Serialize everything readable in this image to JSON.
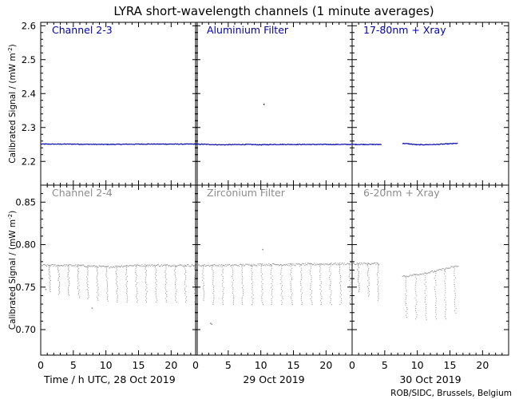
{
  "title": "LYRA short-wavelength channels (1 minute averages)",
  "credit": "ROB/SIDC, Brussels, Belgium",
  "colors": {
    "upper": "#0000aa",
    "lower": "#8c8c8c",
    "axes": "#000000",
    "background": "#ffffff"
  },
  "chart_data": {
    "type": "scatter",
    "x_ticks": [
      "0",
      "5",
      "10",
      "15",
      "20"
    ],
    "day_labels": [
      "Time / h UTC, 28 Oct 2019",
      "29 Oct 2019",
      "30 Oct 2019"
    ],
    "xlim": [
      0,
      24
    ],
    "rows": [
      {
        "ylabel": "Calibrated Signal / (mW m",
        "ylabel_sup": "-2",
        "ylabel_end": ")",
        "ylim": [
          2.13,
          2.61
        ],
        "y_ticks": [
          {
            "v": 2.2,
            "t": "2.2"
          },
          {
            "v": 2.3,
            "t": "2.3"
          },
          {
            "v": 2.4,
            "t": "2.4"
          },
          {
            "v": 2.5,
            "t": "2.5"
          },
          {
            "v": 2.6,
            "t": "2.6"
          }
        ],
        "color": "#0000aa",
        "panels": [
          {
            "name": "Channel 2-3",
            "baseline": [
              [
                0,
                2.251
              ],
              [
                5,
                2.251
              ],
              [
                10,
                2.25
              ],
              [
                15,
                2.251
              ],
              [
                20,
                2.251
              ],
              [
                24,
                2.251
              ]
            ],
            "gaps": [],
            "dips": [],
            "outliers": []
          },
          {
            "name": "Aluminium Filter",
            "baseline": [
              [
                0,
                2.251
              ],
              [
                2,
                2.25
              ],
              [
                4,
                2.249
              ],
              [
                8,
                2.25
              ],
              [
                10,
                2.249
              ],
              [
                12,
                2.25
              ],
              [
                24,
                2.25
              ]
            ],
            "gaps": [],
            "dips": [],
            "outliers": [
              [
                10.4,
                2.37
              ]
            ]
          },
          {
            "name": "17-80nm + Xray",
            "baseline": [
              [
                0,
                2.25
              ],
              [
                4.5,
                2.25
              ],
              [
                8,
                2.253
              ],
              [
                10,
                2.249
              ],
              [
                13,
                2.25
              ],
              [
                16,
                2.253
              ]
            ],
            "gaps": [
              [
                4.5,
                7.6
              ]
            ],
            "xmax": 16.2,
            "dips": [],
            "outliers": []
          }
        ]
      },
      {
        "ylabel": "Calibrated Signal / (mW m",
        "ylabel_sup": "-2",
        "ylabel_end": ")",
        "ylim": [
          0.67,
          0.87
        ],
        "y_ticks": [
          {
            "v": 0.7,
            "t": "0.70"
          },
          {
            "v": 0.75,
            "t": "0.75"
          },
          {
            "v": 0.8,
            "t": "0.80"
          },
          {
            "v": 0.85,
            "t": "0.85"
          }
        ],
        "color": "#8c8c8c",
        "panels": [
          {
            "name": "Channel 2-4",
            "baseline": [
              [
                0,
                0.776
              ],
              [
                5,
                0.776
              ],
              [
                8,
                0.775
              ],
              [
                10,
                0.774
              ],
              [
                14,
                0.776
              ],
              [
                24,
                0.776
              ]
            ],
            "gaps": [],
            "dips": [
              [
                1.2,
                0.745
              ],
              [
                2.6,
                0.742
              ],
              [
                4.1,
                0.741
              ],
              [
                5.6,
                0.738
              ],
              [
                7.0,
                0.737
              ],
              [
                8.5,
                0.735
              ],
              [
                10.0,
                0.734
              ],
              [
                11.5,
                0.733
              ],
              [
                13.0,
                0.733
              ],
              [
                14.5,
                0.733
              ],
              [
                16.0,
                0.733
              ],
              [
                17.5,
                0.733
              ],
              [
                19.0,
                0.733
              ],
              [
                20.5,
                0.733
              ],
              [
                22.0,
                0.733
              ],
              [
                23.5,
                0.733
              ]
            ],
            "outliers": [
              [
                0.7,
                0.748
              ],
              [
                7.8,
                0.726
              ]
            ]
          },
          {
            "name": "Zirconium Filter",
            "baseline": [
              [
                0,
                0.776
              ],
              [
                5,
                0.776
              ],
              [
                10,
                0.777
              ],
              [
                15,
                0.777
              ],
              [
                24,
                0.778
              ]
            ],
            "gaps": [],
            "dips": [
              [
                1.0,
                0.735
              ],
              [
                2.5,
                0.73
              ],
              [
                4.0,
                0.73
              ],
              [
                5.5,
                0.73
              ],
              [
                7.0,
                0.73
              ],
              [
                8.5,
                0.73
              ],
              [
                10.0,
                0.73
              ],
              [
                11.5,
                0.73
              ],
              [
                13.0,
                0.73
              ],
              [
                14.5,
                0.73
              ],
              [
                16.0,
                0.73
              ],
              [
                17.5,
                0.73
              ],
              [
                19.0,
                0.73
              ],
              [
                20.5,
                0.73
              ],
              [
                22.0,
                0.73
              ],
              [
                23.5,
                0.732
              ]
            ],
            "outliers": [
              [
                2.2,
                0.708
              ],
              [
                2.4,
                0.707
              ],
              [
                10.2,
                0.795
              ]
            ]
          },
          {
            "name": "6-20nm + Xray",
            "baseline": [
              [
                0,
                0.778
              ],
              [
                4,
                0.778
              ],
              [
                8,
                0.763
              ],
              [
                12,
                0.768
              ],
              [
                16,
                0.775
              ]
            ],
            "gaps": [
              [
                4.2,
                7.6
              ]
            ],
            "xmax": 16.3,
            "dips": [
              [
                0.8,
                0.745
              ],
              [
                2.3,
                0.74
              ],
              [
                3.8,
                0.735
              ],
              [
                8.1,
                0.715
              ],
              [
                9.6,
                0.713
              ],
              [
                11.1,
                0.712
              ],
              [
                12.6,
                0.713
              ],
              [
                14.1,
                0.713
              ],
              [
                15.6,
                0.72
              ]
            ],
            "outliers": []
          }
        ]
      }
    ]
  }
}
